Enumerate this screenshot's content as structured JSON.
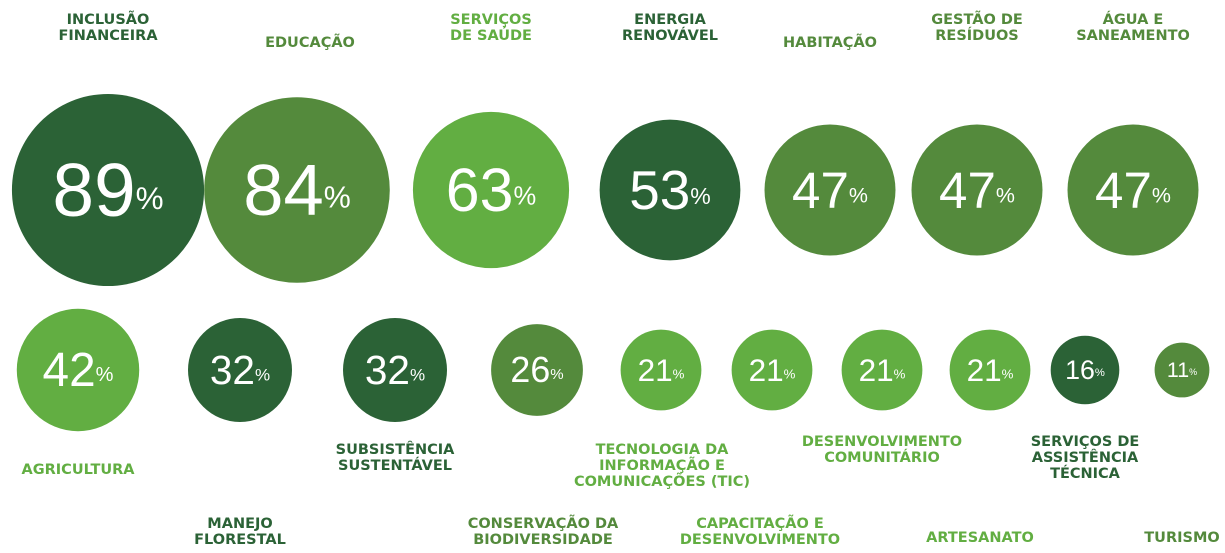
{
  "chart_data": {
    "type": "bubble",
    "unit": "%",
    "categories": [
      "INCLUSÃO\nFINANCEIRA",
      "EDUCAÇÃO",
      "SERVIÇOS\nDE SAÚDE",
      "ENERGIA\nRENOVÁVEL",
      "HABITAÇÃO",
      "GESTÃO DE\nRESÍDUOS",
      "ÁGUA E\nSANEAMENTO",
      "AGRICULTURA",
      "MANEJO\nFLORESTAL",
      "SUBSISTÊNCIA\nSUSTENTÁVEL",
      "CONSERVAÇÃO DA\nBIODIVERSIDADE",
      "TECNOLOGIA DA\nINFORMAÇÃO E\nCOMUNICAÇÕES (TIC)",
      "CAPACITAÇÃO E\nDESENVOLVIMENTO",
      "DESENVOLVIMENTO\nCOMUNITÁRIO",
      "ARTESANATO",
      "SERVIÇOS DE\nASSISTÊNCIA\nTÉCNICA",
      "TURISMO"
    ],
    "values": [
      89,
      84,
      63,
      53,
      47,
      47,
      47,
      42,
      32,
      32,
      26,
      21,
      21,
      21,
      21,
      16,
      11
    ],
    "colors": [
      "#2b6236",
      "#548a3c",
      "#62ae42",
      "#2b6236",
      "#548a3c",
      "#548a3c",
      "#548a3c",
      "#62ae42",
      "#2b6236",
      "#2b6236",
      "#548a3c",
      "#62ae42",
      "#62ae42",
      "#62ae42",
      "#62ae42",
      "#2b6236",
      "#548a3c"
    ]
  }
}
